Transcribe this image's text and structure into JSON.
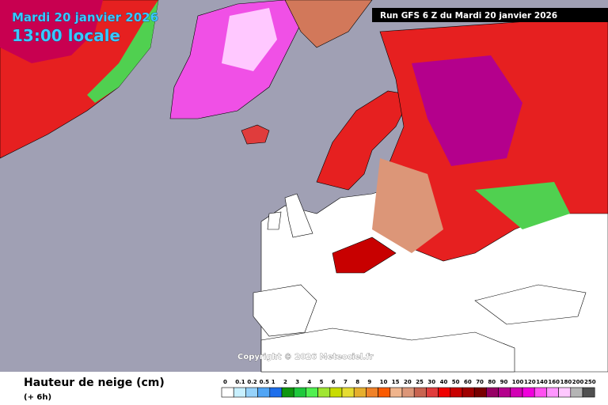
{
  "header": {
    "date": "Mardi 20 janvier 2026",
    "time": "13:00 locale",
    "run": "Run GFS 6 Z du Mardi 20 janvier 2026"
  },
  "copyright": "Copyright © 2026 Meteociel.fr",
  "footer": {
    "title": "Hauteur de neige (cm)",
    "step": "(+ 6h)"
  },
  "legend": {
    "labels": [
      "0",
      "0.1",
      "0.2",
      "0.5",
      "1",
      "2",
      "3",
      "4",
      "5",
      "6",
      "7",
      "8",
      "9",
      "10",
      "15",
      "20",
      "25",
      "30",
      "40",
      "50",
      "60",
      "70",
      "80",
      "90",
      "100",
      "120",
      "140",
      "160",
      "180",
      "200",
      "250"
    ],
    "colors": [
      "#ffffff",
      "#c8f0ff",
      "#96d2fa",
      "#50a5f5",
      "#1e6eeb",
      "#0f960f",
      "#1ec83c",
      "#50f050",
      "#a0e632",
      "#c8dc00",
      "#e6dc32",
      "#e6af2d",
      "#f08228",
      "#fa5a00",
      "#f0b48c",
      "#dc9678",
      "#c86450",
      "#e03c3c",
      "#f00000",
      "#c80000",
      "#a00000",
      "#780000",
      "#960064",
      "#b4008c",
      "#d200b4",
      "#f000dc",
      "#ff50f0",
      "#ff96ff",
      "#ffc8ff",
      "#b4b4b4",
      "#505050"
    ]
  }
}
